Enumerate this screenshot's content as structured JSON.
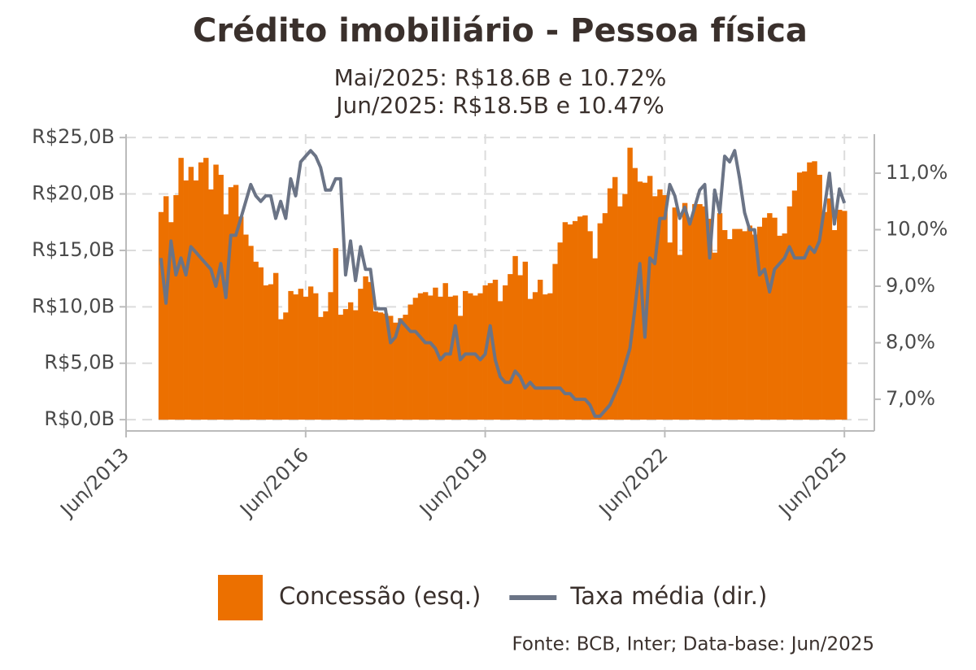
{
  "chart_data": {
    "type": "combo",
    "title": "Crédito imobiliário - Pessoa física",
    "subtitle": [
      "Mai/2025: R$18.6B e 10.72%",
      "Jun/2025: R$18.5B e 10.47%"
    ],
    "source": "Fonte: BCB, Inter; Data-base: Jun/2025",
    "x": [
      "2014-01",
      "2014-02",
      "2014-03",
      "2014-04",
      "2014-05",
      "2014-06",
      "2014-07",
      "2014-08",
      "2014-09",
      "2014-10",
      "2014-11",
      "2014-12",
      "2015-01",
      "2015-02",
      "2015-03",
      "2015-04",
      "2015-05",
      "2015-06",
      "2015-07",
      "2015-08",
      "2015-09",
      "2015-10",
      "2015-11",
      "2015-12",
      "2016-01",
      "2016-02",
      "2016-03",
      "2016-04",
      "2016-05",
      "2016-06",
      "2016-07",
      "2016-08",
      "2016-09",
      "2016-10",
      "2016-11",
      "2016-12",
      "2017-01",
      "2017-02",
      "2017-03",
      "2017-04",
      "2017-05",
      "2017-06",
      "2017-07",
      "2017-08",
      "2017-09",
      "2017-10",
      "2017-11",
      "2017-12",
      "2018-01",
      "2018-02",
      "2018-03",
      "2018-04",
      "2018-05",
      "2018-06",
      "2018-07",
      "2018-08",
      "2018-09",
      "2018-10",
      "2018-11",
      "2018-12",
      "2019-01",
      "2019-02",
      "2019-03",
      "2019-04",
      "2019-05",
      "2019-06",
      "2019-07",
      "2019-08",
      "2019-09",
      "2019-10",
      "2019-11",
      "2019-12",
      "2020-01",
      "2020-02",
      "2020-03",
      "2020-04",
      "2020-05",
      "2020-06",
      "2020-07",
      "2020-08",
      "2020-09",
      "2020-10",
      "2020-11",
      "2020-12",
      "2021-01",
      "2021-02",
      "2021-03",
      "2021-04",
      "2021-05",
      "2021-06",
      "2021-07",
      "2021-08",
      "2021-09",
      "2021-10",
      "2021-11",
      "2021-12",
      "2022-01",
      "2022-02",
      "2022-03",
      "2022-04",
      "2022-05",
      "2022-06",
      "2022-07",
      "2022-08",
      "2022-09",
      "2022-10",
      "2022-11",
      "2022-12",
      "2023-01",
      "2023-02",
      "2023-03",
      "2023-04",
      "2023-05",
      "2023-06",
      "2023-07",
      "2023-08",
      "2023-09",
      "2023-10",
      "2023-11",
      "2023-12",
      "2024-01",
      "2024-02",
      "2024-03",
      "2024-04",
      "2024-05",
      "2024-06",
      "2024-07",
      "2024-08",
      "2024-09",
      "2024-10",
      "2024-11",
      "2024-12",
      "2025-01",
      "2025-02",
      "2025-03",
      "2025-04",
      "2025-05",
      "2025-06"
    ],
    "series": [
      {
        "name": "Concessão (esq.)",
        "type": "bar",
        "color": "#ec7000",
        "values": [
          18.4,
          19.8,
          17.5,
          19.9,
          23.2,
          21.2,
          22.4,
          21.2,
          22.8,
          23.2,
          20.4,
          22.6,
          21.7,
          18.2,
          20.6,
          20.8,
          18.0,
          16.4,
          15.4,
          14.0,
          13.5,
          11.9,
          12.0,
          13.0,
          8.9,
          9.5,
          11.4,
          11.1,
          11.6,
          10.9,
          11.8,
          11.2,
          9.1,
          9.6,
          11.3,
          15.2,
          9.3,
          9.8,
          10.4,
          9.7,
          11.6,
          12.7,
          12.2,
          9.6,
          9.5,
          9.4,
          9.2,
          8.6,
          9.0,
          9.3,
          10.2,
          10.8,
          11.2,
          11.3,
          11.0,
          11.7,
          10.9,
          12.1,
          10.9,
          11.0,
          9.2,
          11.4,
          11.2,
          11.0,
          11.2,
          11.9,
          12.1,
          12.4,
          10.5,
          11.9,
          12.9,
          14.5,
          12.8,
          14.0,
          10.7,
          11.3,
          12.4,
          11.1,
          11.2,
          13.8,
          15.7,
          17.5,
          17.3,
          17.6,
          18.0,
          18.1,
          16.7,
          14.3,
          17.4,
          18.3,
          20.5,
          21.5,
          18.9,
          20.0,
          24.1,
          22.3,
          21.1,
          21.0,
          21.6,
          19.8,
          20.4,
          19.9,
          15.7,
          18.8,
          14.6,
          19.2,
          17.6,
          19.1,
          19.1,
          18.9,
          17.8,
          14.8,
          18.3,
          16.8,
          16.0,
          16.9,
          16.9,
          16.7,
          17.2,
          16.4,
          17.1,
          17.9,
          18.3,
          17.9,
          16.3,
          16.5,
          18.9,
          20.3,
          21.9,
          22.0,
          22.8,
          22.9,
          21.7,
          18.4,
          19.6,
          16.8,
          18.6,
          18.5
        ]
      },
      {
        "name": "Taxa média (dir.)",
        "type": "line",
        "axis": "y2",
        "color": "#6b7486",
        "values": [
          9.5,
          8.7,
          9.8,
          9.2,
          9.5,
          9.2,
          9.7,
          9.6,
          9.5,
          9.4,
          9.3,
          9.0,
          9.4,
          8.8,
          9.9,
          9.9,
          10.2,
          10.5,
          10.8,
          10.6,
          10.5,
          10.6,
          10.6,
          10.2,
          10.5,
          10.2,
          10.9,
          10.6,
          11.2,
          11.3,
          11.4,
          11.3,
          11.1,
          10.7,
          10.7,
          10.9,
          10.9,
          9.2,
          9.8,
          9.1,
          9.7,
          9.3,
          9.3,
          8.6,
          8.6,
          8.6,
          8.0,
          8.1,
          8.4,
          8.3,
          8.2,
          8.2,
          8.1,
          8.0,
          8.0,
          7.9,
          7.7,
          7.8,
          7.8,
          8.3,
          7.7,
          7.8,
          7.8,
          7.8,
          7.7,
          7.8,
          8.3,
          7.7,
          7.4,
          7.3,
          7.3,
          7.5,
          7.4,
          7.2,
          7.3,
          7.2,
          7.2,
          7.2,
          7.2,
          7.2,
          7.2,
          7.1,
          7.1,
          7.0,
          7.0,
          7.0,
          6.9,
          6.7,
          6.7,
          6.8,
          6.9,
          7.1,
          7.3,
          7.6,
          7.9,
          8.6,
          9.4,
          8.1,
          9.5,
          9.4,
          10.2,
          10.2,
          10.8,
          10.6,
          10.2,
          10.4,
          10.1,
          10.4,
          10.7,
          10.8,
          9.5,
          10.7,
          10.3,
          11.3,
          11.2,
          11.4,
          10.9,
          10.3,
          10.0,
          10.0,
          9.2,
          9.3,
          8.9,
          9.3,
          9.4,
          9.5,
          9.7,
          9.5,
          9.5,
          9.5,
          9.7,
          9.6,
          9.8,
          10.4,
          11.0,
          10.1,
          10.72,
          10.47
        ]
      }
    ],
    "xlim": [
      "2013-06",
      "2025-12"
    ],
    "xticks": [
      {
        "value": "2013-06",
        "label": "Jun/2013"
      },
      {
        "value": "2016-06",
        "label": "Jun/2016"
      },
      {
        "value": "2019-06",
        "label": "Jun/2019"
      },
      {
        "value": "2022-06",
        "label": "Jun/2022"
      },
      {
        "value": "2025-06",
        "label": "Jun/2025"
      }
    ],
    "ylim": [
      -1.0,
      25.3
    ],
    "yticks": [
      {
        "value": 0,
        "label": "R$0,0B"
      },
      {
        "value": 5,
        "label": "R$5,0B"
      },
      {
        "value": 10,
        "label": "R$10,0B"
      },
      {
        "value": 15,
        "label": "R$15,0B"
      },
      {
        "value": 20,
        "label": "R$20,0B"
      },
      {
        "value": 25,
        "label": "R$25,0B"
      }
    ],
    "y2lim": [
      6.44,
      11.69
    ],
    "y2ticks": [
      {
        "value": 7,
        "label": "7,0%"
      },
      {
        "value": 8,
        "label": "8,0%"
      },
      {
        "value": 9,
        "label": "9,0%"
      },
      {
        "value": 10,
        "label": "10,0%"
      },
      {
        "value": 11,
        "label": "11,0%"
      }
    ],
    "grid": true,
    "legend": "bottom"
  }
}
